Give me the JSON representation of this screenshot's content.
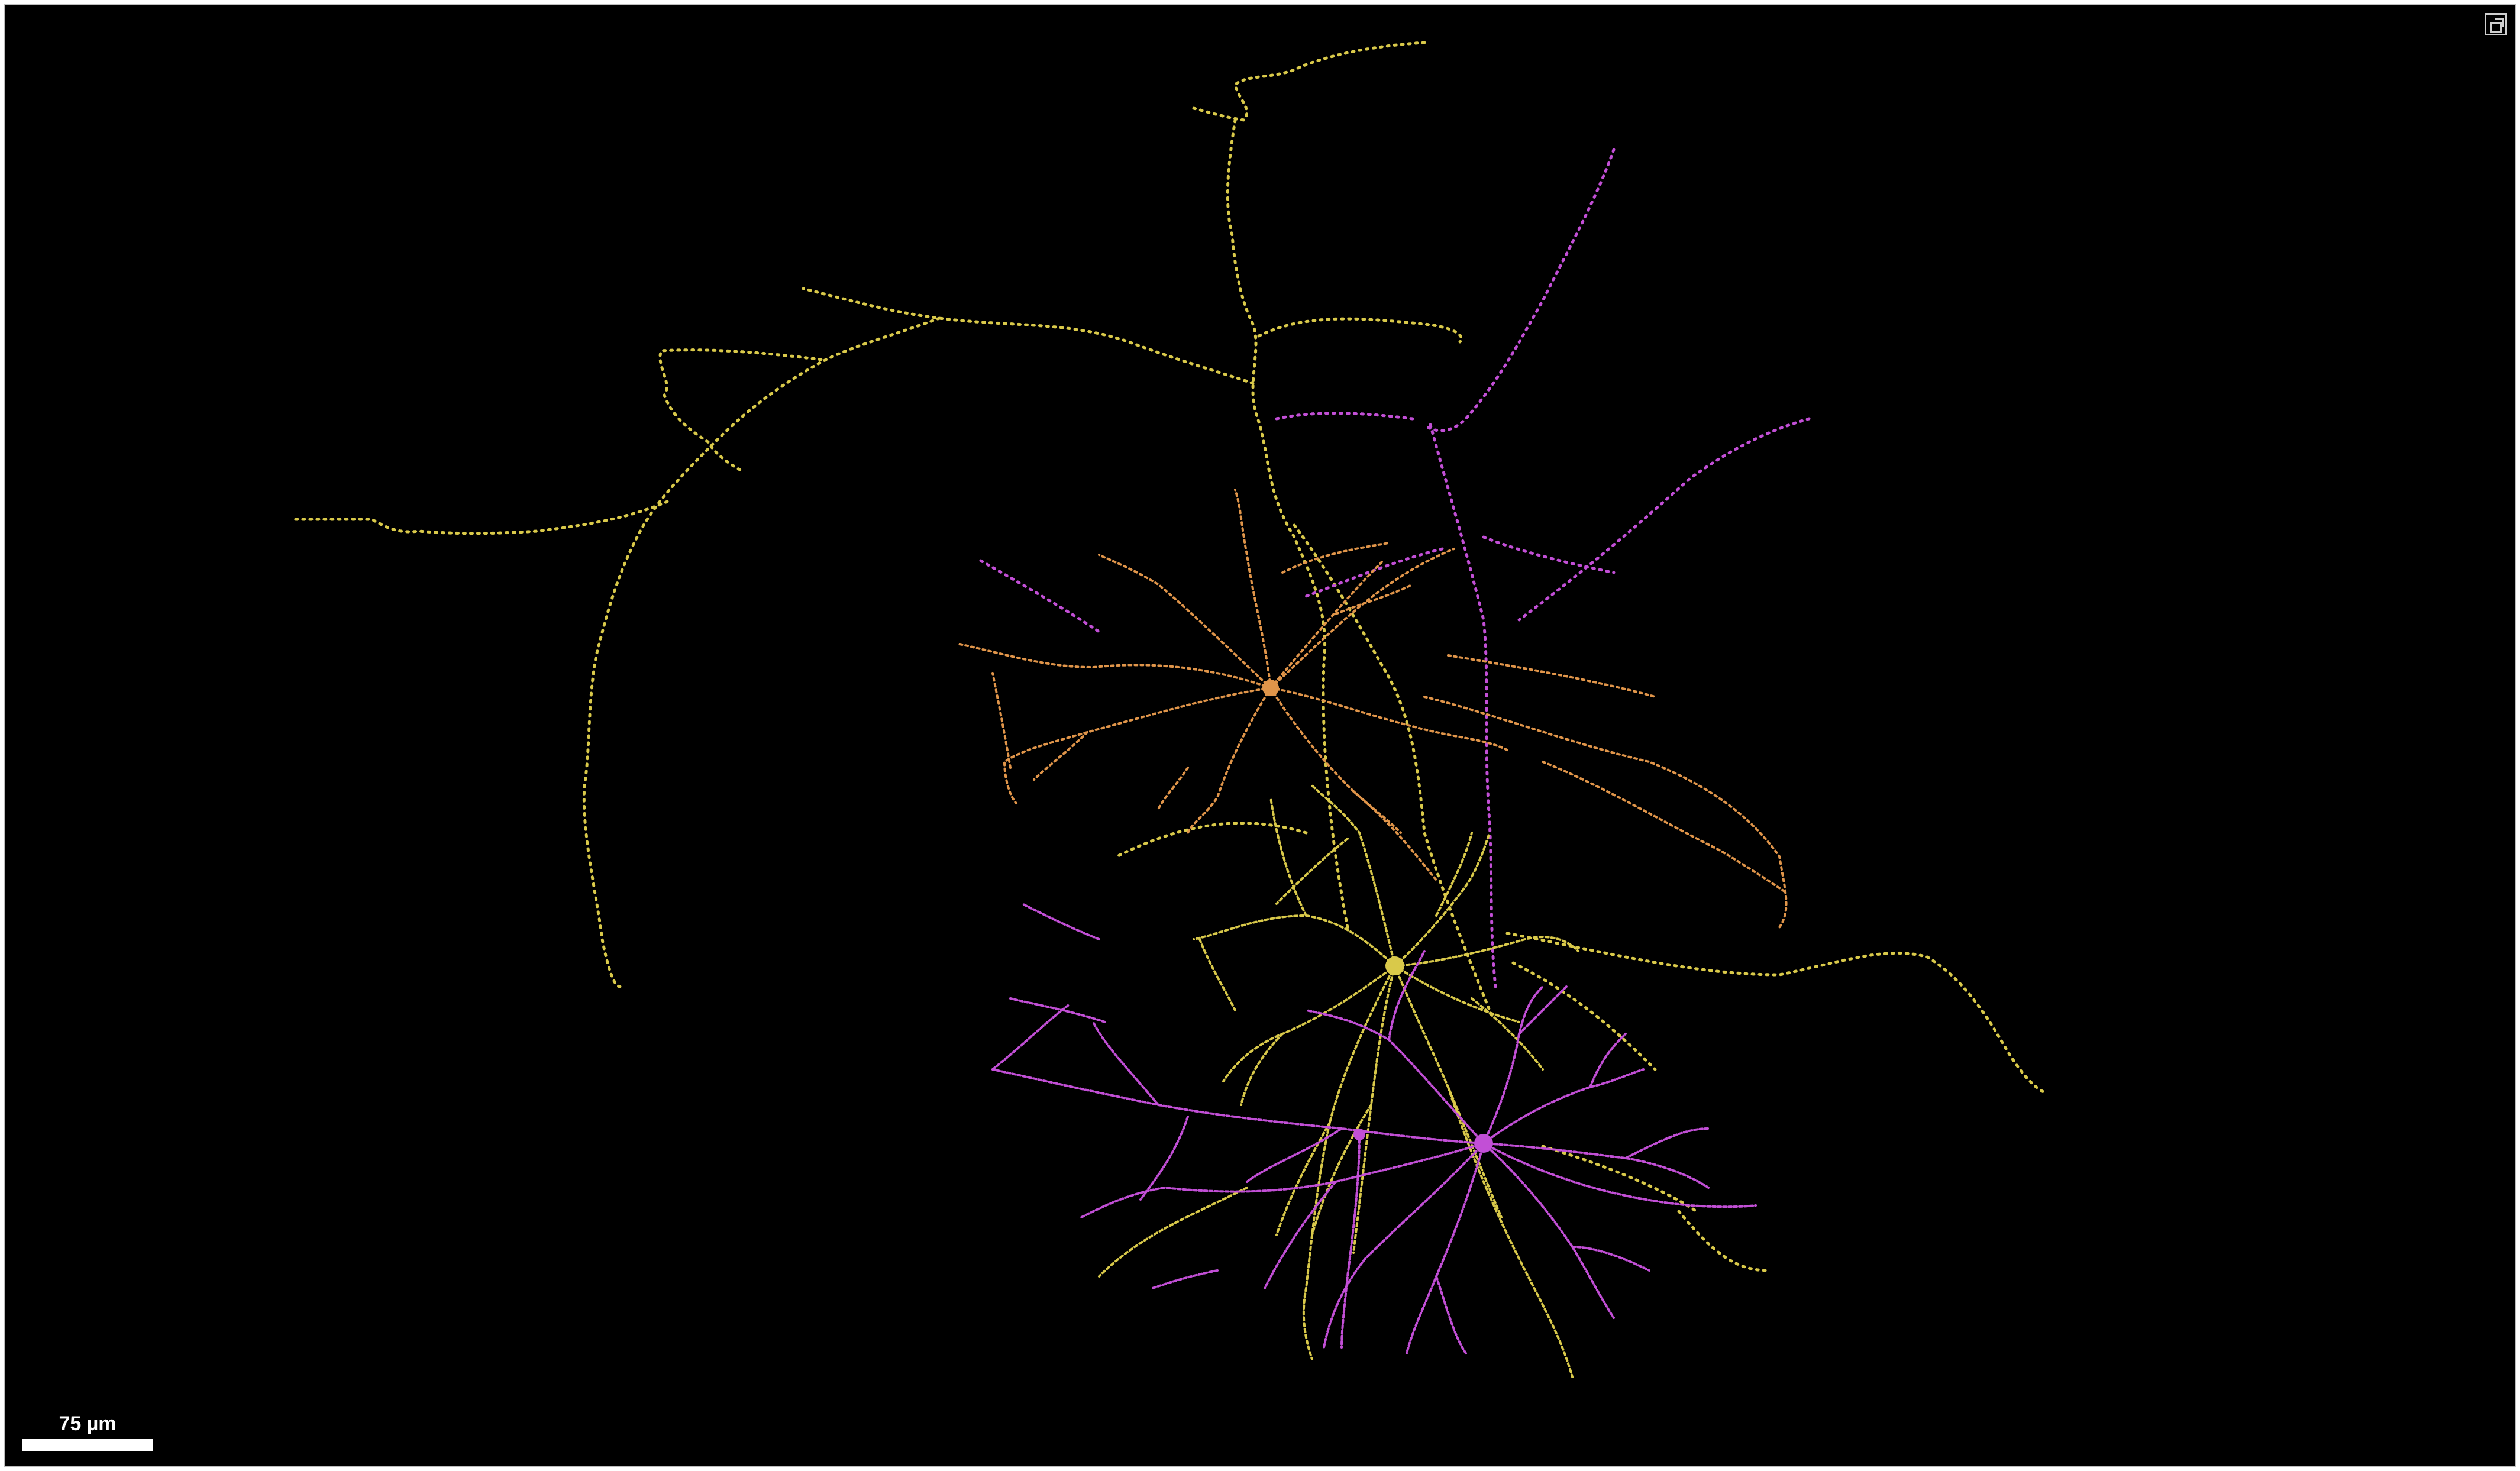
{
  "viewer": {
    "background": "#000000",
    "expand_icon": "expand-view-icon",
    "scale_bar_label": "75 µm"
  },
  "neurons": [
    {
      "name": "neuron-orange",
      "color": "#e0954a"
    },
    {
      "name": "neuron-yellow",
      "color": "#d9c94a"
    },
    {
      "name": "neuron-magenta",
      "color": "#c24fd6"
    }
  ]
}
